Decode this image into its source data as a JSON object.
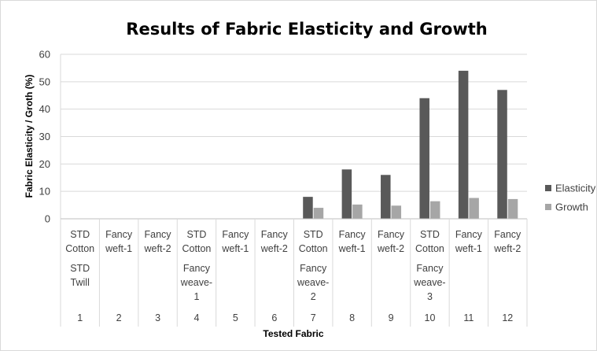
{
  "chart_data": {
    "type": "bar",
    "title": "Results of Fabric Elasticity and Growth",
    "xlabel": "Tested Fabric",
    "ylabel": "Fabric Elasticity / Groth (%)",
    "ylim": [
      0,
      60
    ],
    "yticks": [
      "0",
      "10",
      "20",
      "30",
      "40",
      "50",
      "60"
    ],
    "legend_position": "right",
    "grid": true,
    "category_rows": [
      [
        "STD Cotton",
        "Fancy weft-1",
        "Fancy weft-2",
        "STD Cotton",
        "Fancy weft-1",
        "Fancy weft-2",
        "STD Cotton",
        "Fancy weft-1",
        "Fancy weft-2",
        "STD Cotton",
        "Fancy weft-1",
        "Fancy weft-2"
      ],
      [
        {
          "label": "STD Twill",
          "span": 3
        },
        {
          "label": "Fancy weave-1",
          "span": 3
        },
        {
          "label": "Fancy weave-2",
          "span": 3
        },
        {
          "label": "Fancy weave-3",
          "span": 3
        }
      ],
      [
        "1",
        "2",
        "3",
        "4",
        "5",
        "6",
        "7",
        "8",
        "9",
        "10",
        "11",
        "12"
      ]
    ],
    "series": [
      {
        "name": "Elasticity",
        "color": "#595959",
        "values": [
          0,
          0,
          0,
          0,
          0,
          0,
          8,
          18,
          16,
          44,
          54,
          47
        ]
      },
      {
        "name": "Growth",
        "color": "#a6a6a6",
        "values": [
          0,
          0,
          0,
          0,
          0,
          0,
          4,
          5.2,
          4.8,
          6.4,
          7.6,
          7.2
        ]
      }
    ]
  }
}
